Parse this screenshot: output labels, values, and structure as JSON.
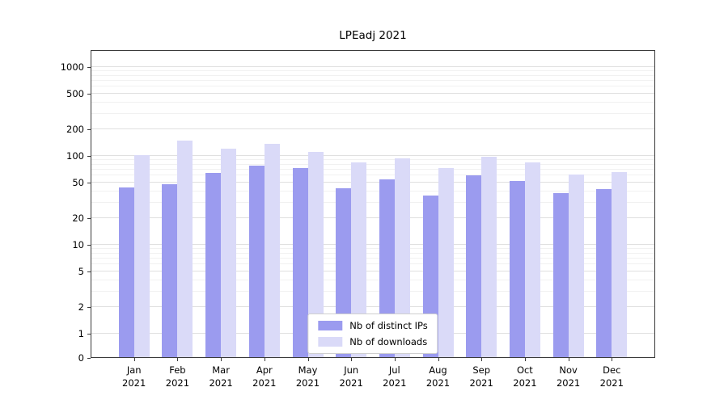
{
  "chart_data": {
    "type": "bar",
    "title": "LPEadj 2021",
    "xlabel": "",
    "ylabel": "",
    "yscale": "symlog",
    "grid": true,
    "ylim": [
      0,
      1500
    ],
    "yticks": [
      0,
      1,
      2,
      5,
      10,
      20,
      50,
      100,
      200,
      500,
      1000
    ],
    "minor_gridlines": [
      3,
      4,
      6,
      7,
      8,
      9,
      30,
      40,
      60,
      70,
      80,
      90,
      300,
      400,
      600,
      700,
      800,
      900
    ],
    "categories": [
      "Jan 2021",
      "Feb 2021",
      "Mar 2021",
      "Apr 2021",
      "May 2021",
      "Jun 2021",
      "Jul 2021",
      "Aug 2021",
      "Sep 2021",
      "Oct 2021",
      "Nov 2021",
      "Dec 2021"
    ],
    "series": [
      {
        "name": "Nb of distinct IPs",
        "color": "#9b9bef",
        "values": [
          44,
          48,
          65,
          78,
          73,
          43,
          54,
          36,
          60,
          52,
          38,
          42
        ]
      },
      {
        "name": "Nb of downloads",
        "color": "#dadaf8",
        "values": [
          102,
          150,
          122,
          138,
          112,
          84,
          95,
          73,
          98,
          85,
          62,
          66
        ]
      }
    ],
    "legend_position": "lower center"
  }
}
